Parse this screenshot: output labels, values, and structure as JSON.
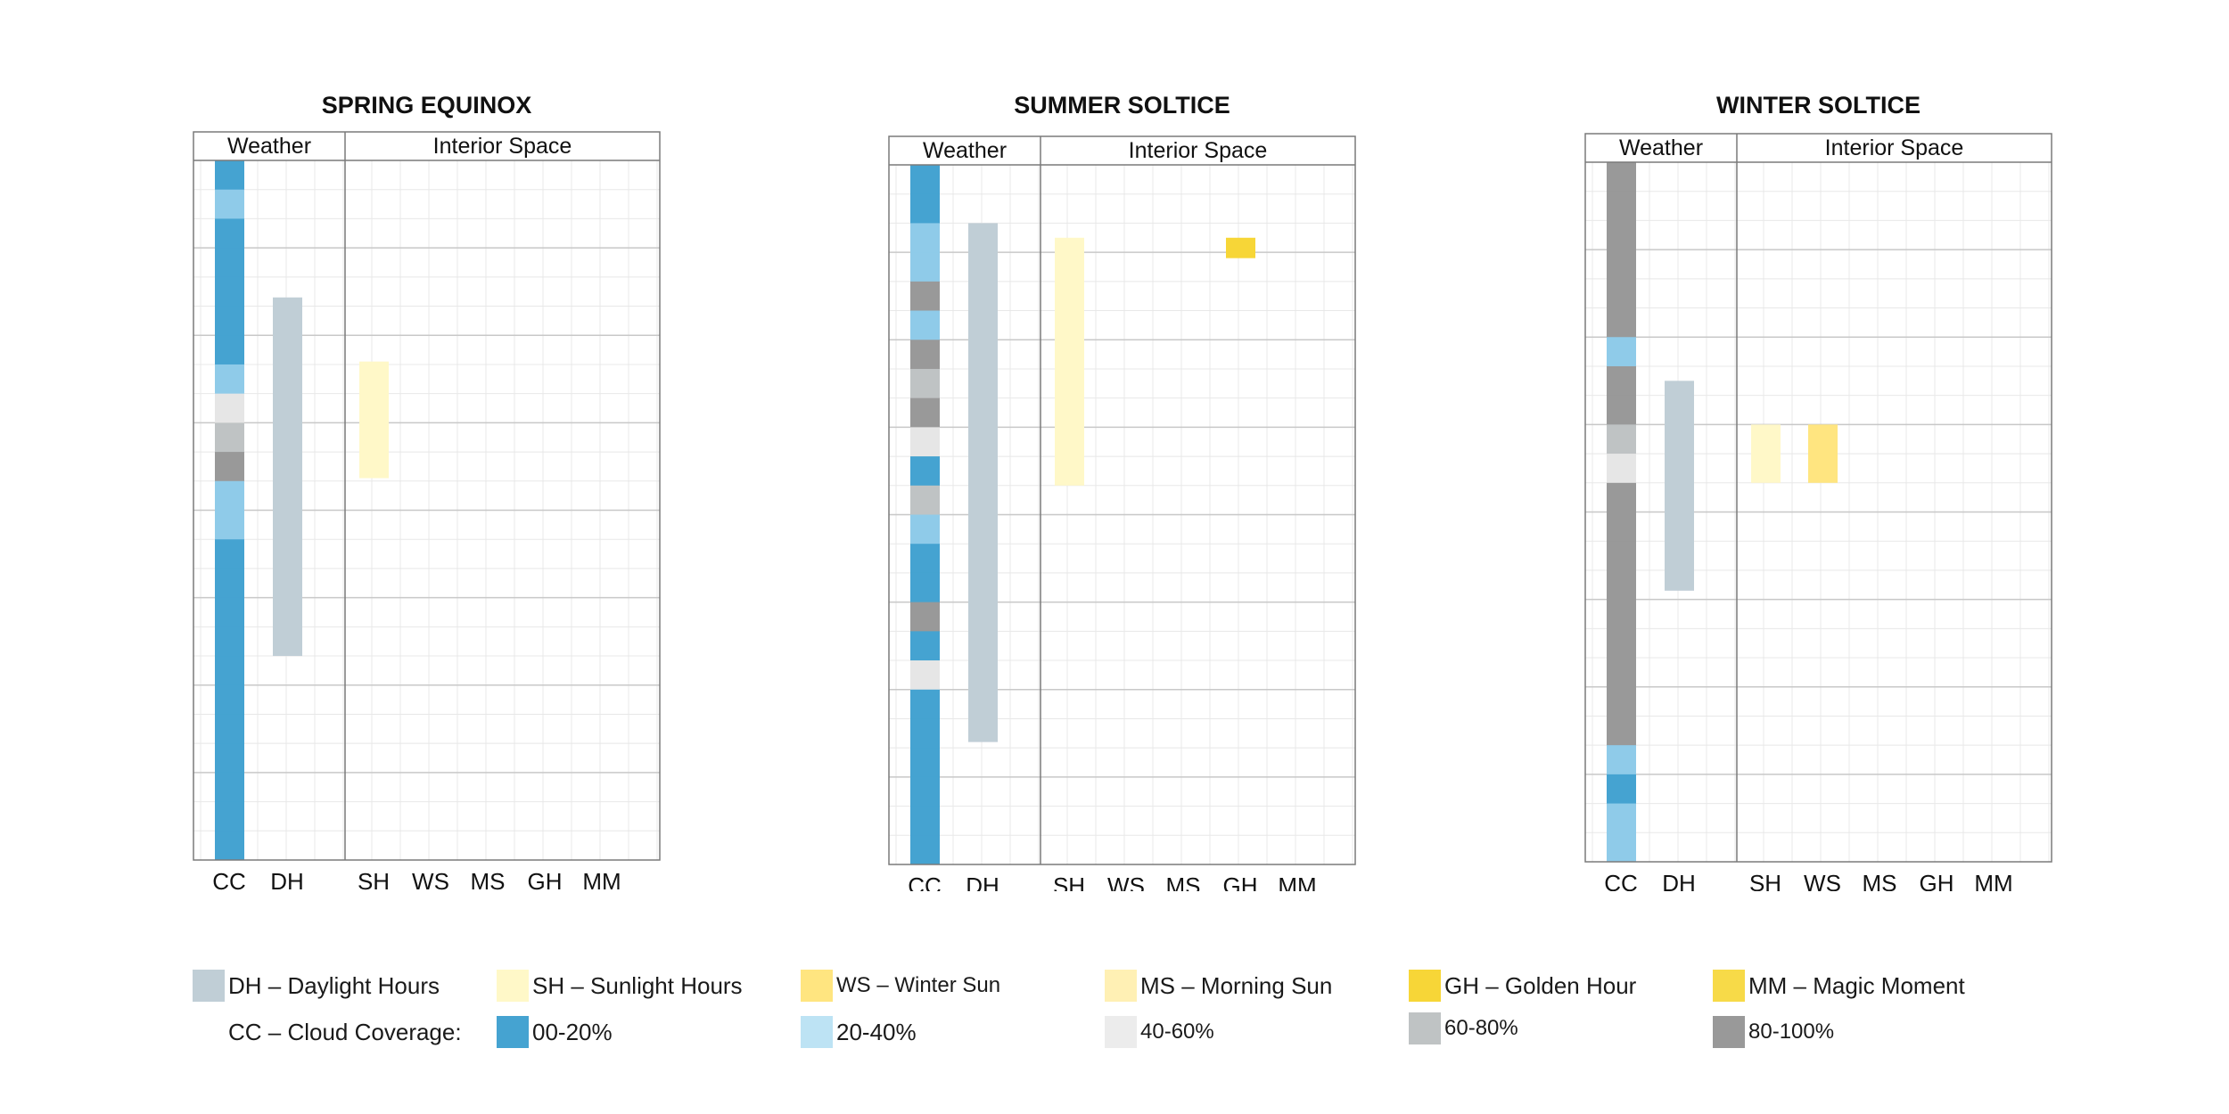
{
  "chart_data": [
    {
      "type": "heatmap",
      "title": "SPRING EQUINOX",
      "group_headers": [
        "Weather",
        "Interior Space"
      ],
      "columns": [
        "CC",
        "DH",
        "SH",
        "WS",
        "MS",
        "GH",
        "MM"
      ],
      "rows": 24,
      "cloud_coverage": [
        "00-20%",
        "20-40%",
        "00-20%",
        "00-20%",
        "00-20%",
        "00-20%",
        "00-20%",
        "20-40%",
        "40-60%",
        "60-80%",
        "80-100%",
        "20-40%",
        "20-40%",
        "00-20%",
        "00-20%",
        "00-20%",
        "00-20%",
        "00-20%",
        "00-20%",
        "00-20%",
        "00-20%",
        "00-20%",
        "00-20%",
        "00-20%"
      ],
      "bars": [
        {
          "column": "DH",
          "start": 4.7,
          "end": 17.0
        },
        {
          "column": "SH",
          "start": 6.9,
          "end": 10.9
        }
      ]
    },
    {
      "type": "heatmap",
      "title": "SUMMER SOLTICE",
      "group_headers": [
        "Weather",
        "Interior Space"
      ],
      "columns": [
        "CC",
        "DH",
        "SH",
        "WS",
        "MS",
        "GH",
        "MM"
      ],
      "rows": 24,
      "cloud_coverage": [
        "00-20%",
        "00-20%",
        "20-40%",
        "20-40%",
        "80-100%",
        "20-40%",
        "80-100%",
        "60-80%",
        "80-100%",
        "40-60%",
        "00-20%",
        "60-80%",
        "20-40%",
        "00-20%",
        "00-20%",
        "80-100%",
        "00-20%",
        "40-60%",
        "00-20%",
        "00-20%",
        "00-20%",
        "00-20%",
        "00-20%",
        "00-20%"
      ],
      "bars": [
        {
          "column": "DH",
          "start": 2.0,
          "end": 19.8
        },
        {
          "column": "SH",
          "start": 2.5,
          "end": 11.0
        },
        {
          "column": "GH",
          "start": 2.5,
          "end": 3.2
        }
      ]
    },
    {
      "type": "heatmap",
      "title": "WINTER SOLTICE",
      "group_headers": [
        "Weather",
        "Interior Space"
      ],
      "columns": [
        "CC",
        "DH",
        "SH",
        "WS",
        "MS",
        "GH",
        "MM"
      ],
      "rows": 24,
      "cloud_coverage": [
        "80-100%",
        "80-100%",
        "80-100%",
        "80-100%",
        "80-100%",
        "80-100%",
        "20-40%",
        "80-100%",
        "80-100%",
        "60-80%",
        "40-60%",
        "80-100%",
        "80-100%",
        "80-100%",
        "80-100%",
        "80-100%",
        "80-100%",
        "80-100%",
        "80-100%",
        "80-100%",
        "20-40%",
        "00-20%",
        "20-40%",
        "20-40%"
      ],
      "bars": [
        {
          "column": "DH",
          "start": 7.5,
          "end": 14.7
        },
        {
          "column": "SH",
          "start": 9.0,
          "end": 11.0
        },
        {
          "column": "WS",
          "start": 9.0,
          "end": 11.0
        }
      ]
    }
  ],
  "colors": {
    "cc_00_20": "#45a3d1",
    "cc_00_20_light": "#5bb3de",
    "cc_20_40": "#bde3f4",
    "cc_20_40_mid": "#8fcbe9",
    "cc_40_60": "#e6e6e6",
    "cc_60_80": "#bfc3c4",
    "cc_80_100": "#999999",
    "daylight": "#c0ced6",
    "sunlight": "#fff8c8",
    "winter_sun": "#ffe580",
    "morning_sun": "#fff0b4",
    "golden_hour": "#f7d637",
    "magic_moment": "#f7da48",
    "grid": "#e8e8e8",
    "hour_line": "#c8c8c8",
    "frame": "#7a7a7a"
  },
  "legend": {
    "items": [
      {
        "label": "DH – Daylight Hours",
        "color": "#c0ced6"
      },
      {
        "label": "SH – Sunlight Hours",
        "color": "#fff8c8"
      },
      {
        "label": "WS – Winter Sun",
        "color": "#ffe580"
      },
      {
        "label": "MS – Morning Sun",
        "color": "#fff0b4"
      },
      {
        "label": "GH – Golden Hour",
        "color": "#f7d637"
      },
      {
        "label": "MM – Magic Moment",
        "color": "#f7da48"
      }
    ],
    "cc_label": "CC – Cloud Coverage:",
    "cc_items": [
      {
        "label": "00-20%",
        "color": "#45a3d1"
      },
      {
        "label": "20-40%",
        "color": "#bde3f4"
      },
      {
        "label": "40-60%",
        "color": "#ececec"
      },
      {
        "label": "60-80%",
        "color": "#bfc3c4"
      },
      {
        "label": "80-100%",
        "color": "#999999"
      }
    ]
  }
}
